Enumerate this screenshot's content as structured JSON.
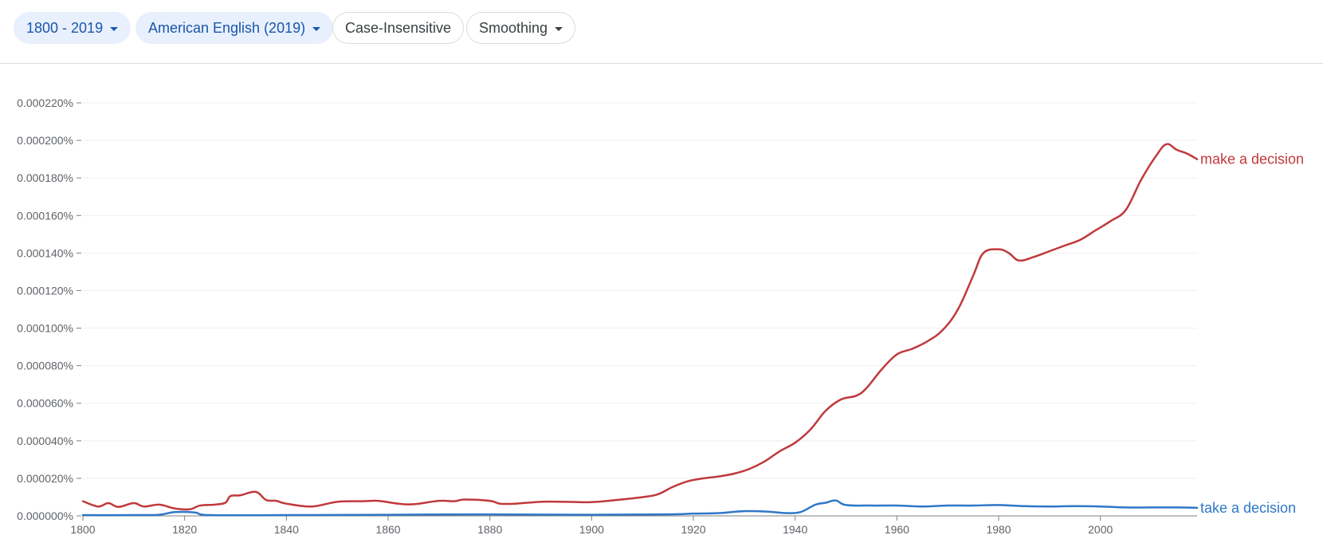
{
  "toolbar": {
    "year_range": "1800 - 2019",
    "corpus": "American English (2019)",
    "case": "Case-Insensitive",
    "smoothing": "Smoothing"
  },
  "colors": {
    "make_a_decision": "#c0393b",
    "take_a_decision": "#2f77c8",
    "chip_active_bg": "#e8f0fe",
    "chip_active_text": "#1a56a8"
  },
  "chart_data": {
    "type": "line",
    "xlim": [
      1800,
      2019
    ],
    "ylim": [
      0,
      0.00022
    ],
    "grid": true,
    "yticks": [
      {
        "value": 0,
        "label": "0.000000%"
      },
      {
        "value": 2e-05,
        "label": "0.000020%"
      },
      {
        "value": 4e-05,
        "label": "0.000040%"
      },
      {
        "value": 6e-05,
        "label": "0.000060%"
      },
      {
        "value": 8e-05,
        "label": "0.000080%"
      },
      {
        "value": 0.0001,
        "label": "0.000100%"
      },
      {
        "value": 0.00012,
        "label": "0.000120%"
      },
      {
        "value": 0.00014,
        "label": "0.000140%"
      },
      {
        "value": 0.00016,
        "label": "0.000160%"
      },
      {
        "value": 0.00018,
        "label": "0.000180%"
      },
      {
        "value": 0.0002,
        "label": "0.000200%"
      },
      {
        "value": 0.00022,
        "label": "0.000220%"
      }
    ],
    "xticks": [
      "1800",
      "1820",
      "1840",
      "1860",
      "1880",
      "1900",
      "1920",
      "1940",
      "1960",
      "1980",
      "2000"
    ],
    "series": [
      {
        "name": "make a decision",
        "color": "#c0393b",
        "points": [
          [
            1800,
            7.8e-06
          ],
          [
            1803,
            5e-06
          ],
          [
            1805,
            6.8e-06
          ],
          [
            1807,
            4.8e-06
          ],
          [
            1810,
            6.8e-06
          ],
          [
            1812,
            5e-06
          ],
          [
            1815,
            6e-06
          ],
          [
            1818,
            4e-06
          ],
          [
            1821,
            3.5e-06
          ],
          [
            1823,
            5.5e-06
          ],
          [
            1826,
            6e-06
          ],
          [
            1828,
            7e-06
          ],
          [
            1829,
            1.05e-05
          ],
          [
            1831,
            1.1e-05
          ],
          [
            1834,
            1.28e-05
          ],
          [
            1836,
            8.5e-06
          ],
          [
            1838,
            8e-06
          ],
          [
            1840,
            6.5e-06
          ],
          [
            1845,
            5e-06
          ],
          [
            1850,
            7.5e-06
          ],
          [
            1855,
            7.8e-06
          ],
          [
            1858,
            8e-06
          ],
          [
            1862,
            6.5e-06
          ],
          [
            1865,
            6.2e-06
          ],
          [
            1870,
            8e-06
          ],
          [
            1873,
            7.8e-06
          ],
          [
            1875,
            8.7e-06
          ],
          [
            1880,
            8e-06
          ],
          [
            1882,
            6.5e-06
          ],
          [
            1885,
            6.5e-06
          ],
          [
            1890,
            7.5e-06
          ],
          [
            1895,
            7.5e-06
          ],
          [
            1900,
            7.3e-06
          ],
          [
            1905,
            8.5e-06
          ],
          [
            1910,
            1e-05
          ],
          [
            1913,
            1.15e-05
          ],
          [
            1916,
            1.55e-05
          ],
          [
            1919,
            1.85e-05
          ],
          [
            1922,
            2e-05
          ],
          [
            1925,
            2.1e-05
          ],
          [
            1928,
            2.25e-05
          ],
          [
            1931,
            2.5e-05
          ],
          [
            1934,
            2.9e-05
          ],
          [
            1937,
            3.45e-05
          ],
          [
            1940,
            3.9e-05
          ],
          [
            1943,
            4.6e-05
          ],
          [
            1946,
            5.6e-05
          ],
          [
            1949,
            6.2e-05
          ],
          [
            1952,
            6.4e-05
          ],
          [
            1954,
            6.8e-05
          ],
          [
            1957,
            7.8e-05
          ],
          [
            1960,
            8.6e-05
          ],
          [
            1963,
            8.9e-05
          ],
          [
            1966,
            9.3e-05
          ],
          [
            1969,
            9.9e-05
          ],
          [
            1972,
            0.00011
          ],
          [
            1975,
            0.000128
          ],
          [
            1977,
            0.00014
          ],
          [
            1980,
            0.000142
          ],
          [
            1982,
            0.00014
          ],
          [
            1984,
            0.000136
          ],
          [
            1987,
            0.000138
          ],
          [
            1990,
            0.000141
          ],
          [
            1993,
            0.000144
          ],
          [
            1996,
            0.000147
          ],
          [
            1999,
            0.000152
          ],
          [
            2002,
            0.000157
          ],
          [
            2005,
            0.000163
          ],
          [
            2008,
            0.000179
          ],
          [
            2011,
            0.000192
          ],
          [
            2013,
            0.000198
          ],
          [
            2015,
            0.000195
          ],
          [
            2017,
            0.000193
          ],
          [
            2019,
            0.00019
          ]
        ]
      },
      {
        "name": "take a decision",
        "color": "#2f77c8",
        "points": [
          [
            1800,
            4e-07
          ],
          [
            1810,
            4e-07
          ],
          [
            1815,
            6e-07
          ],
          [
            1818,
            2e-06
          ],
          [
            1822,
            1.8e-06
          ],
          [
            1825,
            4e-07
          ],
          [
            1840,
            4e-07
          ],
          [
            1860,
            6e-07
          ],
          [
            1880,
            8e-07
          ],
          [
            1900,
            6e-07
          ],
          [
            1915,
            8e-07
          ],
          [
            1920,
            1.2e-06
          ],
          [
            1925,
            1.5e-06
          ],
          [
            1930,
            2.5e-06
          ],
          [
            1935,
            2.2e-06
          ],
          [
            1938,
            1.5e-06
          ],
          [
            1941,
            2e-06
          ],
          [
            1944,
            6e-06
          ],
          [
            1946,
            7e-06
          ],
          [
            1948,
            8.2e-06
          ],
          [
            1950,
            5.8e-06
          ],
          [
            1955,
            5.5e-06
          ],
          [
            1960,
            5.5e-06
          ],
          [
            1965,
            5e-06
          ],
          [
            1970,
            5.5e-06
          ],
          [
            1975,
            5.5e-06
          ],
          [
            1980,
            5.8e-06
          ],
          [
            1985,
            5.2e-06
          ],
          [
            1990,
            5e-06
          ],
          [
            1995,
            5.2e-06
          ],
          [
            2000,
            5e-06
          ],
          [
            2005,
            4.5e-06
          ],
          [
            2010,
            4.5e-06
          ],
          [
            2015,
            4.5e-06
          ],
          [
            2019,
            4.3e-06
          ]
        ]
      }
    ]
  }
}
